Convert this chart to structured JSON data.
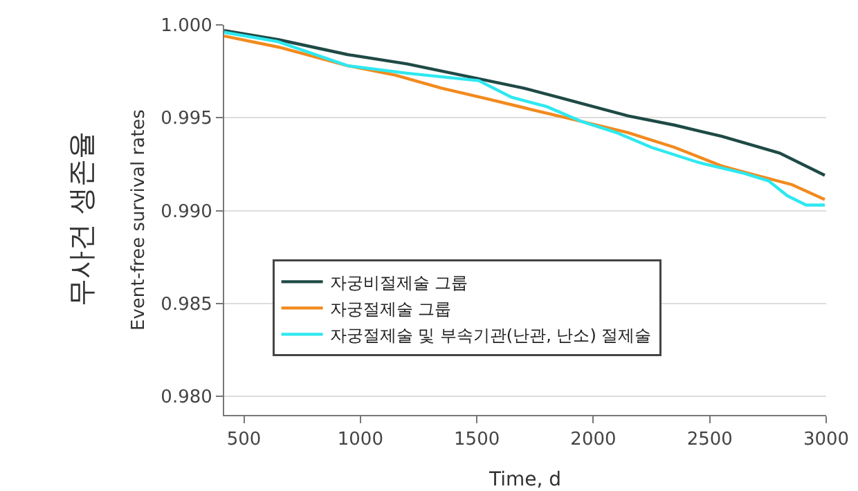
{
  "chart_data": {
    "type": "line",
    "xlabel": "Time, d",
    "ylabel": "Event-free survival rates",
    "annotations": [
      "무사건 생존율"
    ],
    "xlim": [
      415,
      3000
    ],
    "xticks": [
      500,
      1000,
      1500,
      2000,
      2500,
      3000
    ],
    "ylim": [
      0.979,
      1.0
    ],
    "yticks": [
      {
        "value": 0.98,
        "label": "0.980"
      },
      {
        "value": 0.985,
        "label": "0.985"
      },
      {
        "value": 0.99,
        "label": "0.990"
      },
      {
        "value": 0.995,
        "label": "0.995"
      },
      {
        "value": 1.0,
        "label": "1.000"
      }
    ],
    "grid": "y",
    "legend": "bottom left",
    "line_style": "solid",
    "marker": "none",
    "series": [
      {
        "name": "자궁비절제술 그룹",
        "color": "#1f4a46",
        "x": [
          415,
          650,
          946,
          1200,
          1508,
          1700,
          1850,
          2000,
          2150,
          2350,
          2552,
          2800,
          2994
        ],
        "values": [
          0.9997,
          0.9992,
          0.9984,
          0.9979,
          0.9971,
          0.9966,
          0.9961,
          0.9956,
          0.9951,
          0.9946,
          0.994,
          0.9931,
          0.9919
        ]
      },
      {
        "name": "자궁절제술 그룹",
        "color": "#f28a1e",
        "x": [
          415,
          650,
          946,
          1150,
          1347,
          1550,
          1749,
          1950,
          2150,
          2350,
          2552,
          2700,
          2853,
          2994
        ],
        "values": [
          0.9994,
          0.9988,
          0.9978,
          0.9973,
          0.9966,
          0.996,
          0.9954,
          0.9948,
          0.9942,
          0.9934,
          0.9924,
          0.9919,
          0.9914,
          0.9906
        ]
      },
      {
        "name": "자궁절제술 및 부속기관(난관, 난소) 절제술",
        "color": "#2ee8f0",
        "x": [
          415,
          645,
          946,
          1200,
          1508,
          1649,
          1800,
          1950,
          2100,
          2251,
          2450,
          2650,
          2753,
          2833,
          2914,
          2994
        ],
        "values": [
          0.9996,
          0.9991,
          0.9978,
          0.9974,
          0.997,
          0.9961,
          0.9956,
          0.9948,
          0.9942,
          0.9934,
          0.9926,
          0.992,
          0.9916,
          0.9908,
          0.9903,
          0.9903
        ]
      }
    ]
  }
}
